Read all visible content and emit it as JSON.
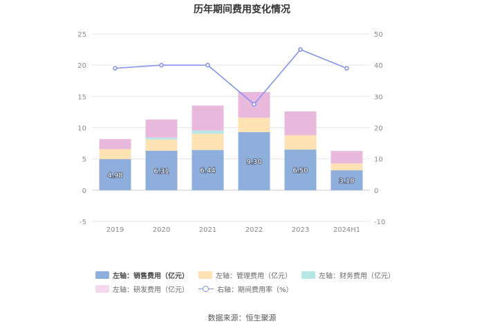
{
  "chart_data": {
    "type": "bar",
    "title": "历年期间费用变化情况",
    "categories": [
      "2019",
      "2020",
      "2021",
      "2022",
      "2023",
      "2024H1"
    ],
    "left_axis": {
      "min": -5,
      "max": 25,
      "step": 5,
      "ticks": [
        "-5",
        "0",
        "5",
        "10",
        "15",
        "20",
        "25"
      ]
    },
    "right_axis": {
      "min": -10,
      "max": 50,
      "step": 10,
      "ticks": [
        "-10",
        "0",
        "10",
        "20",
        "30",
        "40",
        "50"
      ]
    },
    "series": [
      {
        "name": "左轴：销售费用（亿元）",
        "type": "bar",
        "axis": "left",
        "color": "#8eaedc",
        "values": [
          4.98,
          6.31,
          6.44,
          9.3,
          6.5,
          3.18
        ],
        "labels": [
          "4.98",
          "6.31",
          "6.44",
          "9.30",
          "6.50",
          "3.18"
        ]
      },
      {
        "name": "左轴：管理费用（亿元）",
        "type": "bar",
        "axis": "left",
        "color": "#fde2b4",
        "values": [
          1.6,
          1.8,
          2.6,
          2.3,
          2.3,
          1.1
        ]
      },
      {
        "name": "左轴：财务费用（亿元）",
        "type": "bar",
        "axis": "left",
        "color": "#b8e6e4",
        "values": [
          0.0,
          0.3,
          0.5,
          0.0,
          0.0,
          0.0
        ]
      },
      {
        "name": "左轴：研发费用（亿元）",
        "type": "bar",
        "axis": "left",
        "color": "#e8b9dd",
        "values": [
          1.6,
          2.9,
          4.0,
          4.1,
          3.8,
          2.0
        ]
      },
      {
        "name": "右轴：期间费用率（%）",
        "type": "line",
        "axis": "right",
        "color": "#7f8ef0",
        "values": [
          39.0,
          40.0,
          40.0,
          27.5,
          45.0,
          39.0
        ]
      }
    ],
    "grid": true,
    "legend_position": "bottom"
  },
  "source": "数据来源：恒生聚源"
}
